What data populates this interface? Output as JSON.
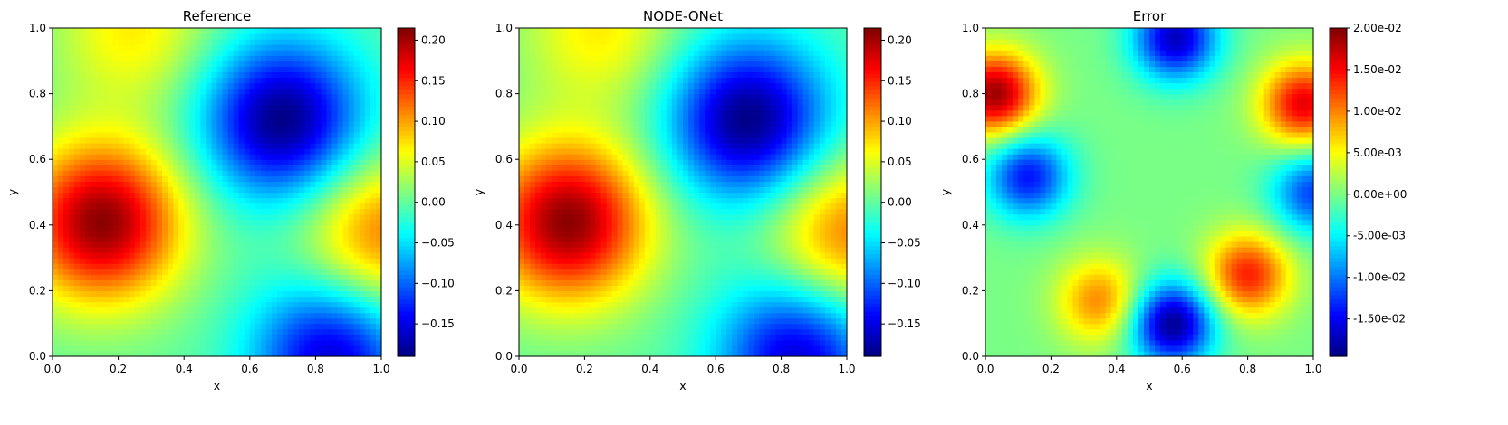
{
  "chart_data": [
    {
      "type": "heatmap",
      "title": "Reference",
      "xlabel": "x",
      "ylabel": "y",
      "xlim": [
        0,
        1
      ],
      "ylim": [
        0,
        1
      ],
      "x_ticks": [
        "0.0",
        "0.2",
        "0.4",
        "0.6",
        "0.8",
        "1.0"
      ],
      "y_ticks": [
        "0.0",
        "0.2",
        "0.4",
        "0.6",
        "0.8",
        "1.0"
      ],
      "colormap": "jet",
      "clim": [
        -0.19,
        0.215
      ],
      "colorbar_ticks": [
        {
          "value": -0.15,
          "label": "−0.15"
        },
        {
          "value": -0.1,
          "label": "−0.10"
        },
        {
          "value": -0.05,
          "label": "−0.05"
        },
        {
          "value": 0.0,
          "label": "0.00"
        },
        {
          "value": 0.05,
          "label": "0.05"
        },
        {
          "value": 0.1,
          "label": "0.10"
        },
        {
          "value": 0.15,
          "label": "0.15"
        },
        {
          "value": 0.2,
          "label": "0.20"
        }
      ],
      "field_features": [
        {
          "kind": "max",
          "x": 0.15,
          "y": 0.41,
          "value": 0.21
        },
        {
          "kind": "max",
          "x": 1.0,
          "y": 0.37,
          "value": 0.12
        },
        {
          "kind": "max",
          "x": 0.25,
          "y": 1.0,
          "value": 0.07
        },
        {
          "kind": "min",
          "x": 0.7,
          "y": 0.72,
          "value": -0.19
        },
        {
          "kind": "min",
          "x": 0.85,
          "y": 0.0,
          "value": -0.16
        }
      ]
    },
    {
      "type": "heatmap",
      "title": "NODE-ONet",
      "xlabel": "x",
      "ylabel": "y",
      "xlim": [
        0,
        1
      ],
      "ylim": [
        0,
        1
      ],
      "x_ticks": [
        "0.0",
        "0.2",
        "0.4",
        "0.6",
        "0.8",
        "1.0"
      ],
      "y_ticks": [
        "0.0",
        "0.2",
        "0.4",
        "0.6",
        "0.8",
        "1.0"
      ],
      "colormap": "jet",
      "clim": [
        -0.19,
        0.215
      ],
      "colorbar_ticks": [
        {
          "value": -0.15,
          "label": "−0.15"
        },
        {
          "value": -0.1,
          "label": "−0.10"
        },
        {
          "value": -0.05,
          "label": "−0.05"
        },
        {
          "value": 0.0,
          "label": "0.00"
        },
        {
          "value": 0.05,
          "label": "0.05"
        },
        {
          "value": 0.1,
          "label": "0.10"
        },
        {
          "value": 0.15,
          "label": "0.15"
        },
        {
          "value": 0.2,
          "label": "0.20"
        }
      ],
      "field_features": [
        {
          "kind": "max",
          "x": 0.15,
          "y": 0.41,
          "value": 0.21
        },
        {
          "kind": "max",
          "x": 1.0,
          "y": 0.37,
          "value": 0.12
        },
        {
          "kind": "max",
          "x": 0.25,
          "y": 1.0,
          "value": 0.07
        },
        {
          "kind": "min",
          "x": 0.7,
          "y": 0.72,
          "value": -0.19
        },
        {
          "kind": "min",
          "x": 0.85,
          "y": 0.0,
          "value": -0.16
        }
      ]
    },
    {
      "type": "heatmap",
      "title": "Error",
      "xlabel": "x",
      "ylabel": "y",
      "xlim": [
        0,
        1
      ],
      "ylim": [
        0,
        1
      ],
      "x_ticks": [
        "0.0",
        "0.2",
        "0.4",
        "0.6",
        "0.8",
        "1.0"
      ],
      "y_ticks": [
        "0.0",
        "0.2",
        "0.4",
        "0.6",
        "0.8",
        "1.0"
      ],
      "colormap": "jet",
      "clim": [
        -0.0195,
        0.02
      ],
      "colorbar_ticks": [
        {
          "value": -0.015,
          "label": "-1.50e-02"
        },
        {
          "value": -0.01,
          "label": "-1.00e-02"
        },
        {
          "value": -0.005,
          "label": "-5.00e-03"
        },
        {
          "value": 0.0,
          "label": "0.00e+00"
        },
        {
          "value": 0.005,
          "label": "5.00e-03"
        },
        {
          "value": 0.01,
          "label": "1.00e-02"
        },
        {
          "value": 0.015,
          "label": "1.50e-02"
        },
        {
          "value": 0.02,
          "label": "2.00e-02"
        }
      ],
      "field_features": [
        {
          "kind": "max",
          "x": 0.03,
          "y": 0.8,
          "value": 0.019
        },
        {
          "kind": "max",
          "x": 0.97,
          "y": 0.77,
          "value": 0.016
        },
        {
          "kind": "max",
          "x": 0.8,
          "y": 0.25,
          "value": 0.014
        },
        {
          "kind": "max",
          "x": 0.35,
          "y": 0.17,
          "value": 0.01
        },
        {
          "kind": "min",
          "x": 0.57,
          "y": 0.1,
          "value": -0.019
        },
        {
          "kind": "min",
          "x": 0.58,
          "y": 0.97,
          "value": -0.017
        },
        {
          "kind": "min",
          "x": 0.13,
          "y": 0.55,
          "value": -0.014
        },
        {
          "kind": "min",
          "x": 1.0,
          "y": 0.5,
          "value": -0.012
        }
      ]
    }
  ]
}
